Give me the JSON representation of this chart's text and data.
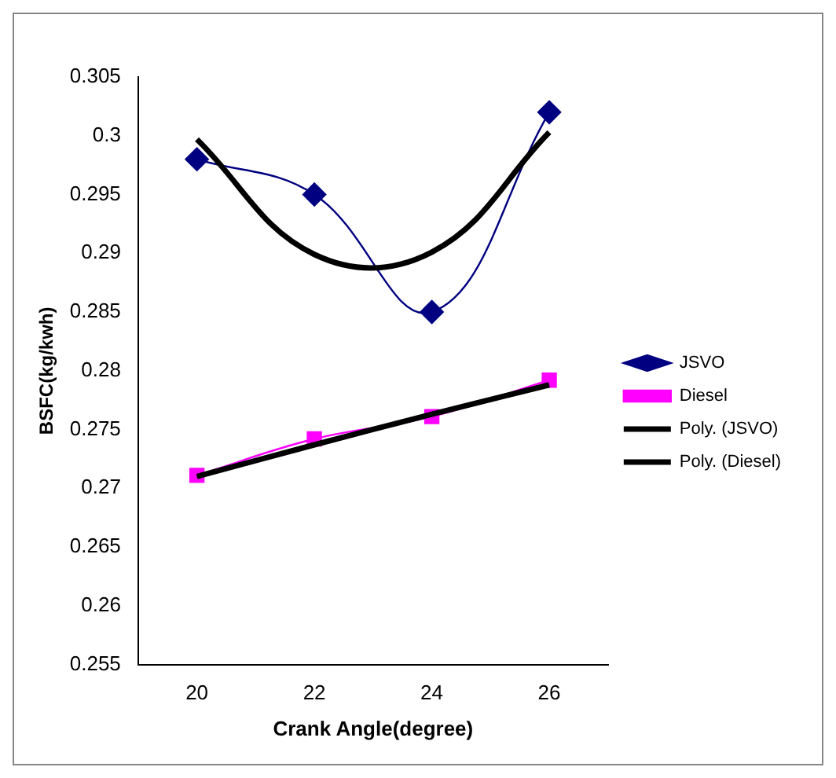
{
  "chart_data": {
    "type": "line",
    "xlabel": "Crank Angle(degree)",
    "ylabel": "BSFC(kg/kwh)",
    "categories": [
      "20",
      "22",
      "24",
      "26"
    ],
    "series": [
      {
        "name": "JSVO",
        "color": "#000080",
        "values": [
          0.298,
          0.295,
          0.285,
          0.302
        ],
        "marker": "diamond"
      },
      {
        "name": "Diesel",
        "color": "#ff00ff",
        "values": [
          0.2711,
          0.2742,
          0.2761,
          0.2792
        ],
        "marker": "square"
      },
      {
        "name": "Poly. (JSVO)",
        "color": "#000000",
        "values": [
          0.2997,
          0.2899,
          0.2901,
          0.3003
        ],
        "marker": "none"
      },
      {
        "name": "Poly. (Diesel)",
        "color": "#000000",
        "values": [
          0.271,
          0.2737,
          0.2763,
          0.2788
        ],
        "marker": "none"
      }
    ],
    "ylim": [
      0.255,
      0.305
    ],
    "yticks": [
      0.255,
      0.26,
      0.265,
      0.27,
      0.275,
      0.28,
      0.285,
      0.29,
      0.295,
      0.3,
      0.305
    ],
    "grid": false,
    "legend": "right"
  }
}
